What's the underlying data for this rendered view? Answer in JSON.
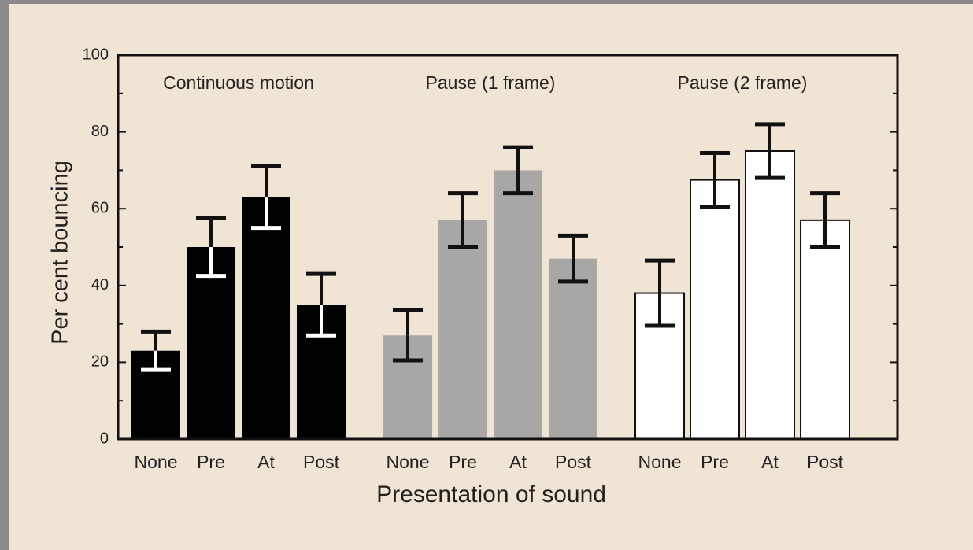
{
  "chart_data": {
    "type": "bar",
    "y_label": "Per cent bouncing",
    "x_label": "Presentation of sound",
    "categories": [
      "None",
      "Pre",
      "At",
      "Post"
    ],
    "series": [
      {
        "name": "Continuous motion",
        "color": "#000000",
        "values": [
          23,
          50,
          63,
          35
        ],
        "errors": [
          5,
          7.5,
          8,
          8
        ]
      },
      {
        "name": "Pause (1 frame)",
        "color": "#a9a6a6",
        "values": [
          27,
          57,
          70,
          47
        ],
        "errors": [
          6.5,
          7,
          6,
          6
        ]
      },
      {
        "name": "Pause  (2 frame)",
        "color": "#ffffff",
        "values": [
          38,
          67.5,
          75,
          57
        ],
        "errors": [
          8.5,
          7,
          7,
          7
        ]
      }
    ],
    "ylim": [
      0,
      100
    ],
    "yticks": [
      0,
      20,
      40,
      60,
      80,
      100
    ]
  }
}
